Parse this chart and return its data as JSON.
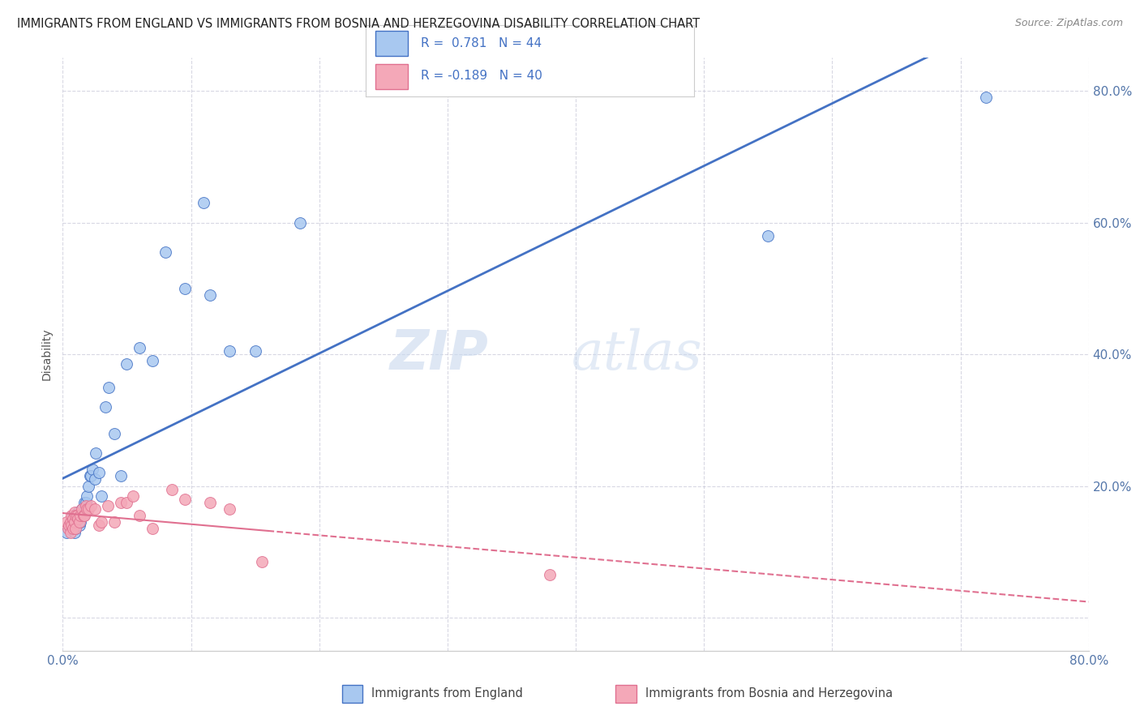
{
  "title": "IMMIGRANTS FROM ENGLAND VS IMMIGRANTS FROM BOSNIA AND HERZEGOVINA DISABILITY CORRELATION CHART",
  "source": "Source: ZipAtlas.com",
  "ylabel": "Disability",
  "xlim": [
    0.0,
    0.8
  ],
  "ylim": [
    -0.05,
    0.85
  ],
  "legend_r1": "R =  0.781   N = 44",
  "legend_r2": "R = -0.189   N = 40",
  "legend1_label": "Immigrants from England",
  "legend2_label": "Immigrants from Bosnia and Herzegovina",
  "color_england": "#a8c8f0",
  "color_bosnia": "#f4a8b8",
  "line_england": "#4472c4",
  "line_bosnia": "#e07090",
  "watermark_zip": "ZIP",
  "watermark_atlas": "atlas",
  "england_x": [
    0.003,
    0.005,
    0.006,
    0.007,
    0.008,
    0.008,
    0.009,
    0.009,
    0.01,
    0.01,
    0.011,
    0.012,
    0.013,
    0.013,
    0.014,
    0.015,
    0.016,
    0.017,
    0.018,
    0.019,
    0.02,
    0.021,
    0.022,
    0.023,
    0.025,
    0.026,
    0.028,
    0.03,
    0.033,
    0.036,
    0.04,
    0.045,
    0.05,
    0.06,
    0.07,
    0.08,
    0.095,
    0.11,
    0.115,
    0.13,
    0.15,
    0.185,
    0.55,
    0.72
  ],
  "england_y": [
    0.13,
    0.14,
    0.135,
    0.145,
    0.14,
    0.155,
    0.13,
    0.155,
    0.135,
    0.145,
    0.155,
    0.16,
    0.14,
    0.155,
    0.145,
    0.165,
    0.155,
    0.175,
    0.175,
    0.185,
    0.2,
    0.215,
    0.215,
    0.225,
    0.21,
    0.25,
    0.22,
    0.185,
    0.32,
    0.35,
    0.28,
    0.215,
    0.385,
    0.41,
    0.39,
    0.555,
    0.5,
    0.63,
    0.49,
    0.405,
    0.405,
    0.6,
    0.58,
    0.79
  ],
  "bosnia_x": [
    0.003,
    0.004,
    0.005,
    0.006,
    0.006,
    0.007,
    0.007,
    0.008,
    0.008,
    0.009,
    0.009,
    0.01,
    0.01,
    0.011,
    0.012,
    0.013,
    0.014,
    0.015,
    0.016,
    0.017,
    0.018,
    0.019,
    0.02,
    0.022,
    0.025,
    0.028,
    0.03,
    0.035,
    0.04,
    0.045,
    0.05,
    0.055,
    0.06,
    0.07,
    0.085,
    0.095,
    0.115,
    0.13,
    0.155,
    0.38
  ],
  "bosnia_y": [
    0.145,
    0.135,
    0.14,
    0.13,
    0.145,
    0.14,
    0.155,
    0.135,
    0.15,
    0.145,
    0.16,
    0.135,
    0.155,
    0.155,
    0.15,
    0.145,
    0.155,
    0.165,
    0.155,
    0.155,
    0.17,
    0.165,
    0.165,
    0.17,
    0.165,
    0.14,
    0.145,
    0.17,
    0.145,
    0.175,
    0.175,
    0.185,
    0.155,
    0.135,
    0.195,
    0.18,
    0.175,
    0.165,
    0.085,
    0.065
  ]
}
